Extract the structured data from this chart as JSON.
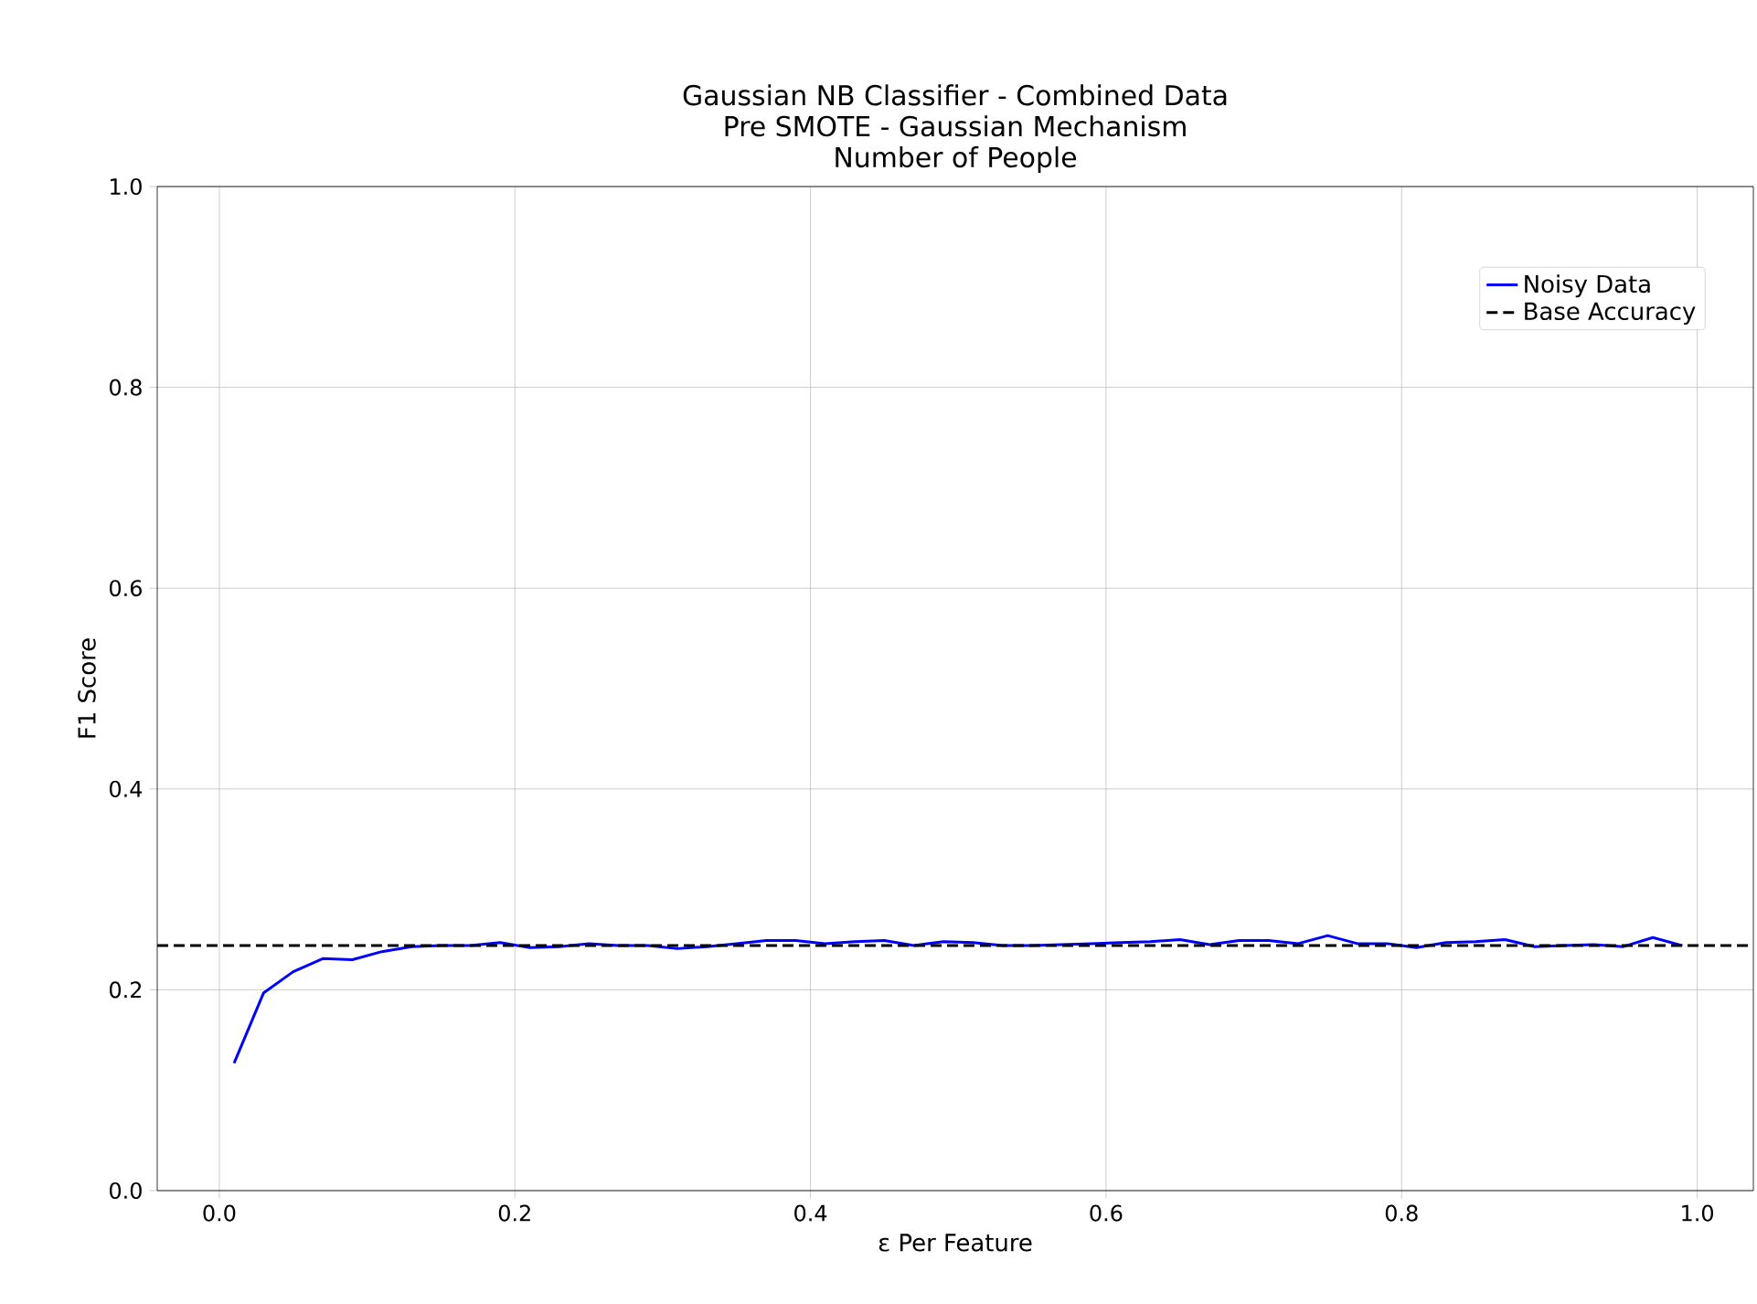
{
  "chart_data": {
    "type": "line",
    "title": "Gaussian NB Classifier - Combined Data",
    "subtitle": "Pre SMOTE - Gaussian Mechanism",
    "annotations": [
      "Number of People"
    ],
    "xlabel": "ε Per Feature",
    "ylabel": "F1 Score",
    "x": [
      0.01,
      0.03,
      0.05,
      0.07,
      0.09,
      0.11,
      0.13,
      0.15,
      0.17,
      0.19,
      0.21,
      0.23,
      0.25,
      0.27,
      0.29,
      0.31,
      0.33,
      0.35,
      0.37,
      0.39,
      0.41,
      0.43,
      0.45,
      0.47,
      0.49,
      0.51,
      0.53,
      0.55,
      0.57,
      0.59,
      0.61,
      0.63,
      0.65,
      0.67,
      0.69,
      0.71,
      0.73,
      0.75,
      0.77,
      0.79,
      0.81,
      0.83,
      0.85,
      0.87,
      0.89,
      0.91,
      0.93,
      0.95,
      0.97,
      0.99
    ],
    "series": [
      {
        "name": "Noisy Data",
        "color": "#0000ff",
        "line_style": "solid",
        "values": [
          0.127,
          0.197,
          0.218,
          0.231,
          0.23,
          0.238,
          0.243,
          0.244,
          0.244,
          0.247,
          0.242,
          0.243,
          0.246,
          0.244,
          0.244,
          0.241,
          0.243,
          0.246,
          0.249,
          0.249,
          0.246,
          0.248,
          0.249,
          0.244,
          0.248,
          0.247,
          0.244,
          0.244,
          0.245,
          0.246,
          0.247,
          0.248,
          0.25,
          0.245,
          0.249,
          0.249,
          0.246,
          0.254,
          0.246,
          0.246,
          0.242,
          0.247,
          0.248,
          0.25,
          0.243,
          0.244,
          0.245,
          0.243,
          0.252,
          0.244
        ]
      }
    ],
    "ref_lines": [
      {
        "axis": "y",
        "value": 0.244,
        "label": "Base Accuracy",
        "color": "#000000",
        "line_style": "dashed"
      }
    ],
    "xlim": [
      -0.042,
      1.038
    ],
    "ylim": [
      0,
      1
    ],
    "xticks": [
      {
        "value": 0,
        "label": "0.0"
      },
      {
        "value": 0.2,
        "label": "0.2"
      },
      {
        "value": 0.4,
        "label": "0.4"
      },
      {
        "value": 0.6,
        "label": "0.6"
      },
      {
        "value": 0.8,
        "label": "0.8"
      },
      {
        "value": 1,
        "label": "1.0"
      }
    ],
    "yticks": [
      {
        "value": 0,
        "label": "0.0"
      },
      {
        "value": 0.2,
        "label": "0.2"
      },
      {
        "value": 0.4,
        "label": "0.4"
      },
      {
        "value": 0.6,
        "label": "0.6"
      },
      {
        "value": 0.8,
        "label": "0.8"
      },
      {
        "value": 1,
        "label": "1.0"
      }
    ],
    "grid": true,
    "legend": "top right",
    "marker": "none"
  }
}
